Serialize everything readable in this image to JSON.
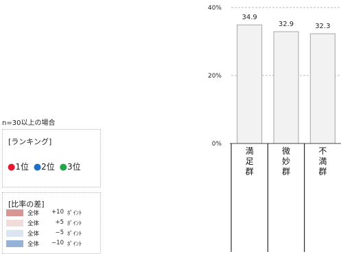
{
  "note": "n=30以上の場合",
  "ranking": {
    "title": "[ランキング]",
    "items": [
      {
        "label": "1位",
        "color": "#e8192c"
      },
      {
        "label": "2位",
        "color": "#1f6fc5"
      },
      {
        "label": "3位",
        "color": "#1fa648"
      }
    ]
  },
  "legend": {
    "title": "[比率の差]",
    "rows": [
      {
        "total": "全体",
        "value": "+10",
        "unit": "ﾎﾟｲﾝﾄ",
        "color": "#d99594"
      },
      {
        "total": "全体",
        "value": "+5",
        "unit": "ﾎﾟｲﾝﾄ",
        "color": "#f2dcdb"
      },
      {
        "total": "全体",
        "value": "−5",
        "unit": "ﾎﾟｲﾝﾄ",
        "color": "#dbe5f1"
      },
      {
        "total": "全体",
        "value": "−10",
        "unit": "ﾎﾟｲﾝﾄ",
        "color": "#95b3d7"
      }
    ]
  },
  "chart_data": {
    "type": "bar",
    "categories": [
      "満足群",
      "微妙群",
      "不満群"
    ],
    "values": [
      34.9,
      32.9,
      32.3
    ],
    "data_labels": [
      "34.9",
      "32.9",
      "32.3"
    ],
    "yticks": [
      "0%",
      "20%",
      "40%"
    ],
    "ylim": [
      0,
      40
    ],
    "grid": "dashed horizontal at 20% and 40%",
    "bar_color": "#f2f2f2",
    "bar_border": "#a6a6a6"
  }
}
